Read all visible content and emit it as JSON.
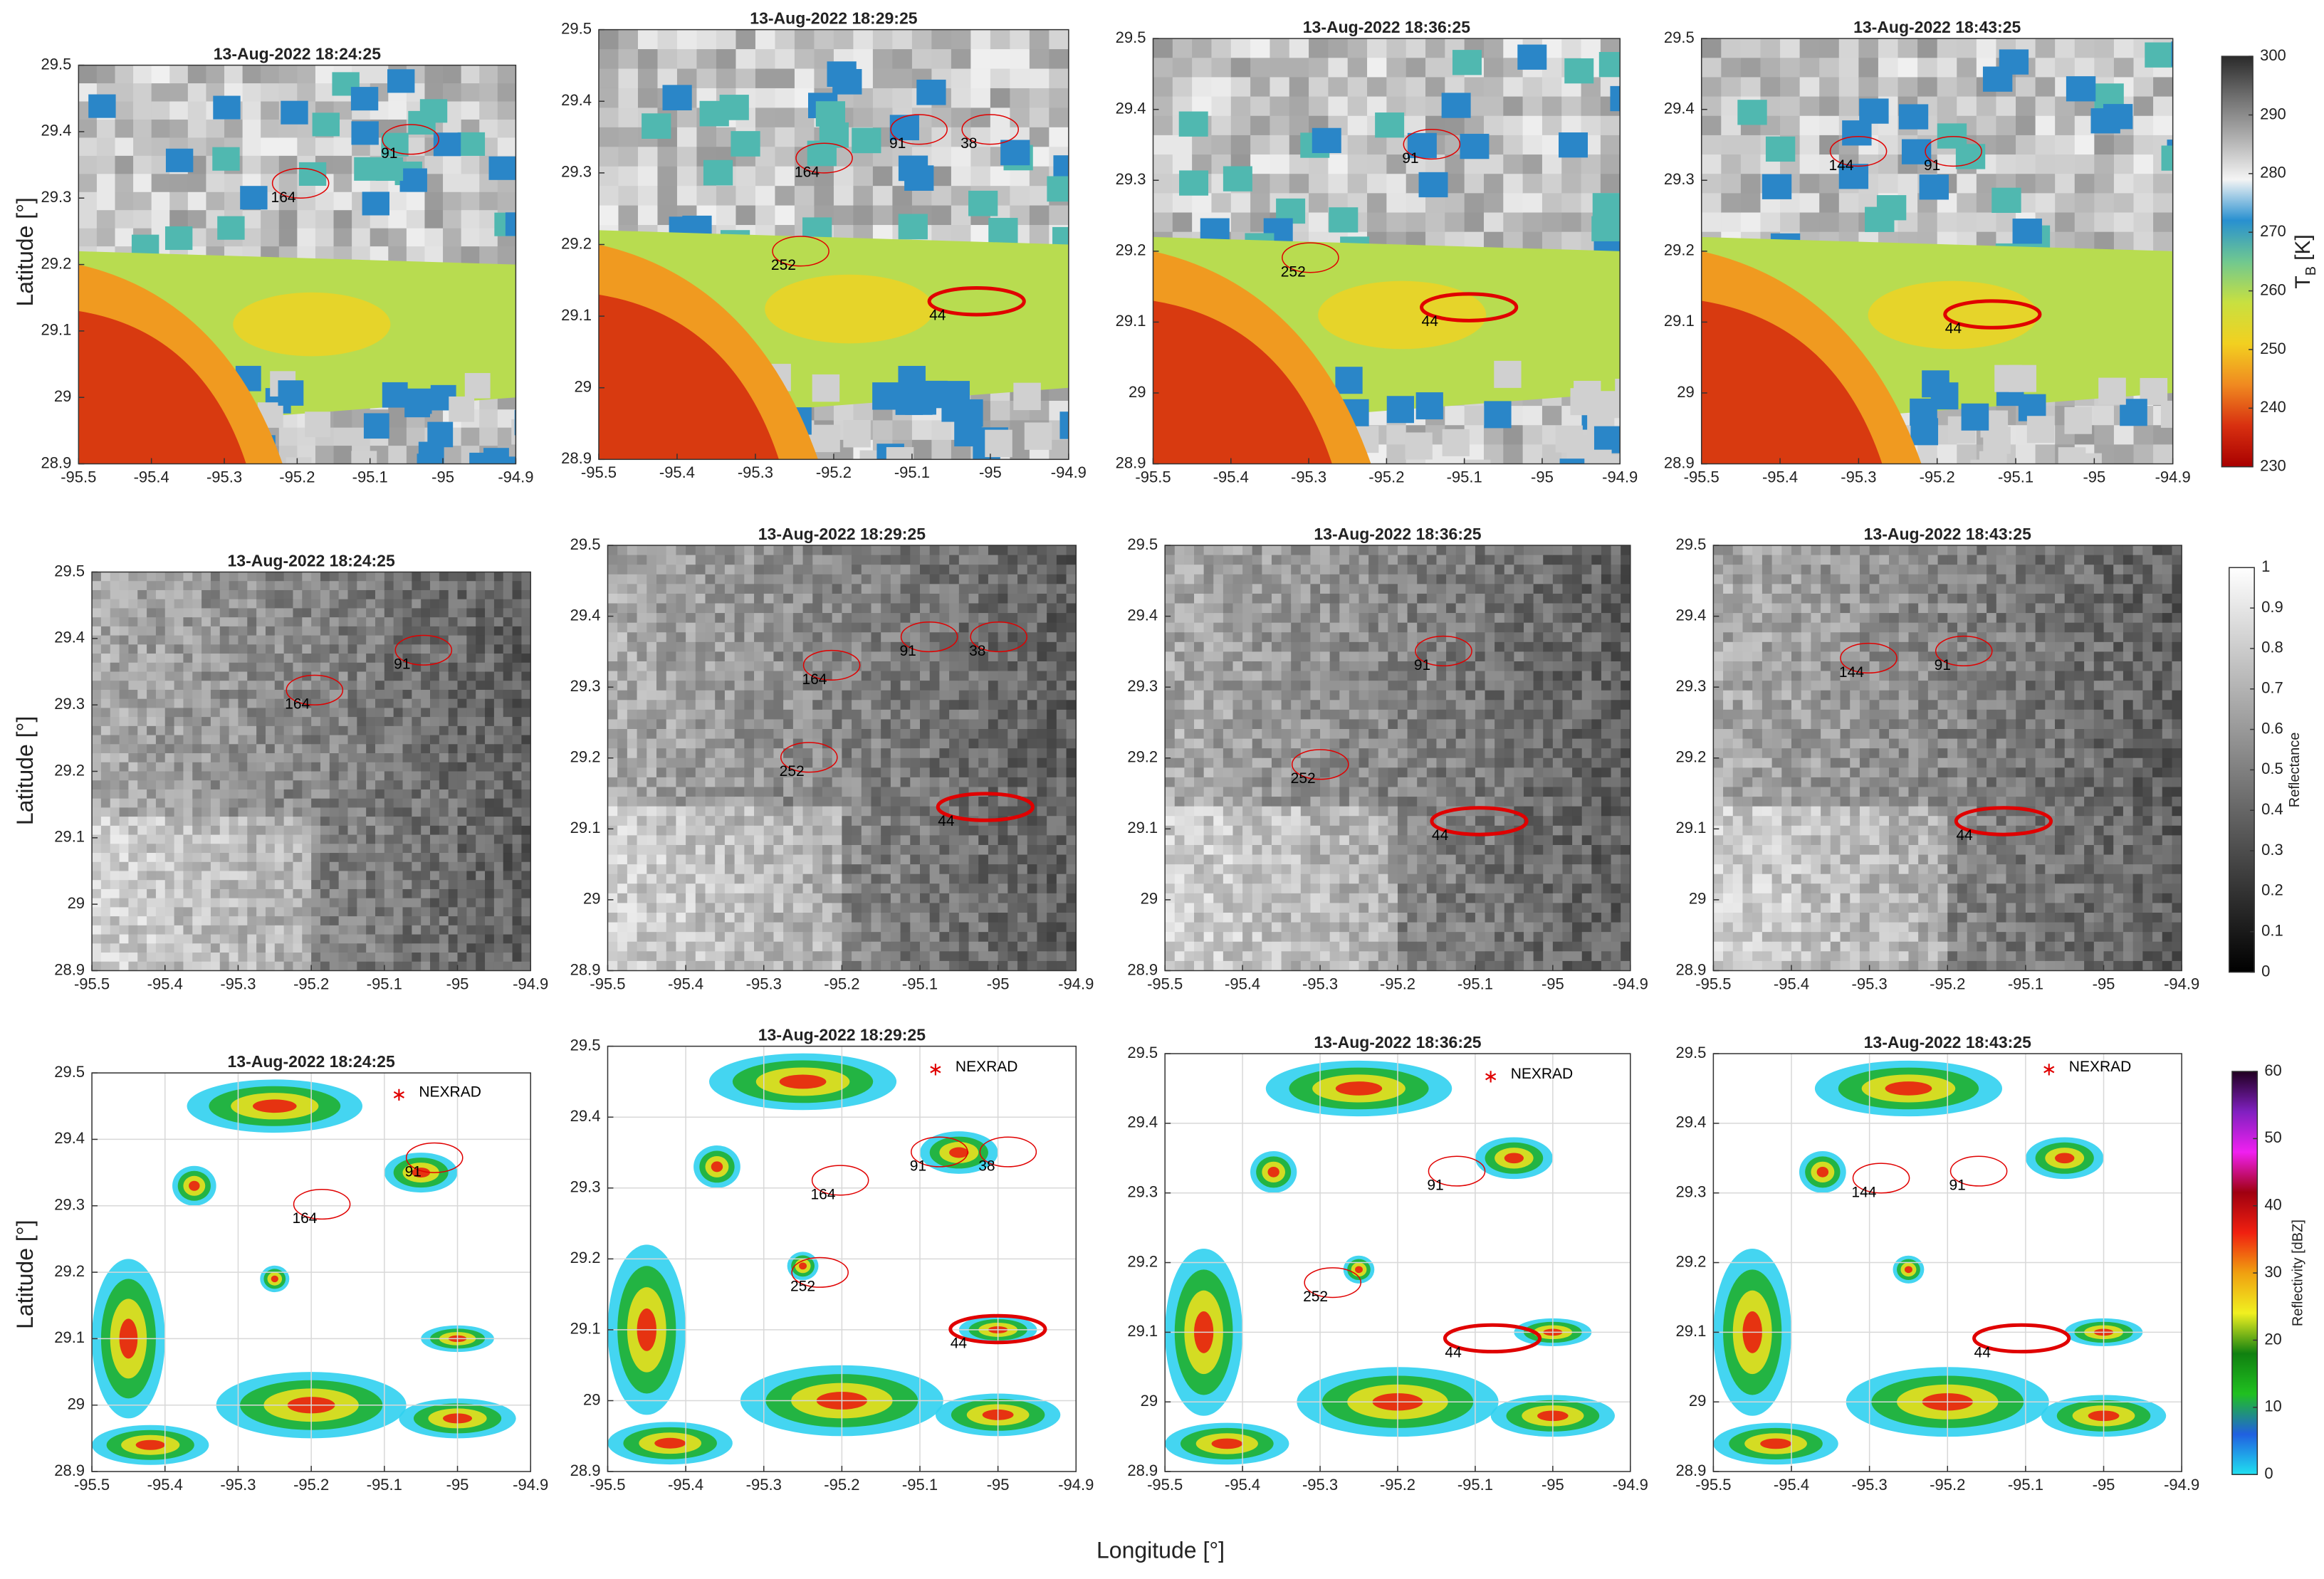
{
  "figure": {
    "ylabel": "Latitude [°]",
    "xlabel": "Longitude [°]"
  },
  "chart_data": [
    {
      "type": "map",
      "layer": "ir",
      "title": "13-Aug-2022 18:24:25",
      "xlim": [
        -95.5,
        -94.9
      ],
      "ylim": [
        28.9,
        29.5
      ],
      "xticks": [
        -95.5,
        -95.4,
        -95.3,
        -95.2,
        -95.1,
        -95,
        -94.9
      ],
      "yticks": [
        28.9,
        29,
        29.1,
        29.2,
        29.3,
        29.4,
        29.5
      ],
      "grid": false,
      "contour_color": "#e00000",
      "cells": [
        {
          "label": 91,
          "lon": -95.085,
          "lat": 29.366,
          "bold": false
        },
        {
          "label": 164,
          "lon": -95.236,
          "lat": 29.3,
          "bold": false
        }
      ]
    },
    {
      "type": "map",
      "layer": "ir",
      "title": "13-Aug-2022 18:29:25",
      "xlim": [
        -95.5,
        -94.9
      ],
      "ylim": [
        28.9,
        29.5
      ],
      "xticks": [
        -95.5,
        -95.4,
        -95.3,
        -95.2,
        -95.1,
        -95,
        -94.9
      ],
      "yticks": [
        28.9,
        29,
        29.1,
        29.2,
        29.3,
        29.4,
        29.5
      ],
      "grid": false,
      "contour_color": "#e00000",
      "cells": [
        {
          "label": 91,
          "lon": -95.129,
          "lat": 29.34,
          "bold": false
        },
        {
          "label": 38,
          "lon": -95.038,
          "lat": 29.34,
          "bold": false
        },
        {
          "label": 164,
          "lon": -95.25,
          "lat": 29.3,
          "bold": false
        },
        {
          "label": 252,
          "lon": -95.28,
          "lat": 29.17,
          "bold": false
        },
        {
          "label": 44,
          "lon": -95.078,
          "lat": 29.1,
          "bold": true
        }
      ]
    },
    {
      "type": "map",
      "layer": "ir",
      "title": "13-Aug-2022 18:36:25",
      "xlim": [
        -95.5,
        -94.9
      ],
      "ylim": [
        28.9,
        29.5
      ],
      "xticks": [
        -95.5,
        -95.4,
        -95.3,
        -95.2,
        -95.1,
        -95,
        -94.9
      ],
      "yticks": [
        28.9,
        29,
        29.1,
        29.2,
        29.3,
        29.4,
        29.5
      ],
      "grid": false,
      "contour_color": "#e00000",
      "cells": [
        {
          "label": 91,
          "lon": -95.18,
          "lat": 29.33,
          "bold": false
        },
        {
          "label": 252,
          "lon": -95.336,
          "lat": 29.17,
          "bold": false
        },
        {
          "label": 44,
          "lon": -95.155,
          "lat": 29.1,
          "bold": true
        }
      ]
    },
    {
      "type": "map",
      "layer": "ir",
      "title": "13-Aug-2022 18:43:25",
      "xlim": [
        -95.5,
        -94.9
      ],
      "ylim": [
        28.9,
        29.5
      ],
      "xticks": [
        -95.5,
        -95.4,
        -95.3,
        -95.2,
        -95.1,
        -95,
        -94.9
      ],
      "yticks": [
        28.9,
        29,
        29.1,
        29.2,
        29.3,
        29.4,
        29.5
      ],
      "grid": false,
      "contour_color": "#e00000",
      "cells": [
        {
          "label": 144,
          "lon": -95.338,
          "lat": 29.32,
          "bold": false
        },
        {
          "label": 91,
          "lon": -95.217,
          "lat": 29.32,
          "bold": false
        },
        {
          "label": 44,
          "lon": -95.19,
          "lat": 29.09,
          "bold": true
        }
      ]
    },
    {
      "type": "map",
      "layer": "vis",
      "title": "13-Aug-2022 18:24:25",
      "xlim": [
        -95.5,
        -94.9
      ],
      "ylim": [
        28.9,
        29.5
      ],
      "xticks": [
        -95.5,
        -95.4,
        -95.3,
        -95.2,
        -95.1,
        -95,
        -94.9
      ],
      "yticks": [
        28.9,
        29,
        29.1,
        29.2,
        29.3,
        29.4,
        29.5
      ],
      "grid": false,
      "contour_color": "#e00000",
      "cells": [
        {
          "label": 91,
          "lon": -95.087,
          "lat": 29.36,
          "bold": false
        },
        {
          "label": 164,
          "lon": -95.236,
          "lat": 29.3,
          "bold": false
        }
      ]
    },
    {
      "type": "map",
      "layer": "vis",
      "title": "13-Aug-2022 18:29:25",
      "xlim": [
        -95.5,
        -94.9
      ],
      "ylim": [
        28.9,
        29.5
      ],
      "xticks": [
        -95.5,
        -95.4,
        -95.3,
        -95.2,
        -95.1,
        -95,
        -94.9
      ],
      "yticks": [
        28.9,
        29,
        29.1,
        29.2,
        29.3,
        29.4,
        29.5
      ],
      "grid": false,
      "contour_color": "#e00000",
      "cells": [
        {
          "label": 91,
          "lon": -95.126,
          "lat": 29.35,
          "bold": false
        },
        {
          "label": 38,
          "lon": -95.037,
          "lat": 29.35,
          "bold": false
        },
        {
          "label": 164,
          "lon": -95.251,
          "lat": 29.31,
          "bold": false
        },
        {
          "label": 252,
          "lon": -95.28,
          "lat": 29.18,
          "bold": false
        },
        {
          "label": 44,
          "lon": -95.077,
          "lat": 29.11,
          "bold": true
        }
      ]
    },
    {
      "type": "map",
      "layer": "vis",
      "title": "13-Aug-2022 18:36:25",
      "xlim": [
        -95.5,
        -94.9
      ],
      "ylim": [
        28.9,
        29.5
      ],
      "xticks": [
        -95.5,
        -95.4,
        -95.3,
        -95.2,
        -95.1,
        -95,
        -94.9
      ],
      "yticks": [
        28.9,
        29,
        29.1,
        29.2,
        29.3,
        29.4,
        29.5
      ],
      "grid": false,
      "contour_color": "#e00000",
      "cells": [
        {
          "label": 91,
          "lon": -95.179,
          "lat": 29.33,
          "bold": false
        },
        {
          "label": 252,
          "lon": -95.338,
          "lat": 29.17,
          "bold": false
        },
        {
          "label": 44,
          "lon": -95.156,
          "lat": 29.09,
          "bold": true
        }
      ]
    },
    {
      "type": "map",
      "layer": "vis",
      "title": "13-Aug-2022 18:43:25",
      "xlim": [
        -95.5,
        -94.9
      ],
      "ylim": [
        28.9,
        29.5
      ],
      "xticks": [
        -95.5,
        -95.4,
        -95.3,
        -95.2,
        -95.1,
        -95,
        -94.9
      ],
      "yticks": [
        28.9,
        29,
        29.1,
        29.2,
        29.3,
        29.4,
        29.5
      ],
      "grid": false,
      "contour_color": "#e00000",
      "cells": [
        {
          "label": 144,
          "lon": -95.339,
          "lat": 29.32,
          "bold": false
        },
        {
          "label": 91,
          "lon": -95.217,
          "lat": 29.33,
          "bold": false
        },
        {
          "label": 44,
          "lon": -95.189,
          "lat": 29.09,
          "bold": true
        }
      ]
    },
    {
      "type": "map",
      "layer": "radar",
      "title": "13-Aug-2022 18:24:25",
      "xlim": [
        -95.5,
        -94.9
      ],
      "ylim": [
        28.9,
        29.5
      ],
      "xticks": [
        -95.5,
        -95.4,
        -95.3,
        -95.2,
        -95.1,
        -95,
        -94.9
      ],
      "yticks": [
        28.9,
        29,
        29.1,
        29.2,
        29.3,
        29.4,
        29.5
      ],
      "grid": true,
      "contour_color": "#e00000",
      "annotation": {
        "text": "NEXRAD",
        "lon": -95.08,
        "lat": 29.47
      },
      "cells": [
        {
          "label": 91,
          "lon": -95.072,
          "lat": 29.35,
          "bold": false
        },
        {
          "label": 164,
          "lon": -95.226,
          "lat": 29.28,
          "bold": false
        }
      ]
    },
    {
      "type": "map",
      "layer": "radar",
      "title": "13-Aug-2022 18:29:25",
      "xlim": [
        -95.5,
        -94.9
      ],
      "ylim": [
        28.9,
        29.5
      ],
      "xticks": [
        -95.5,
        -95.4,
        -95.3,
        -95.2,
        -95.1,
        -95,
        -94.9
      ],
      "yticks": [
        28.9,
        29,
        29.1,
        29.2,
        29.3,
        29.4,
        29.5
      ],
      "grid": true,
      "contour_color": "#e00000",
      "annotation": {
        "text": "NEXRAD",
        "lon": -95.08,
        "lat": 29.47
      },
      "cells": [
        {
          "label": 91,
          "lon": -95.113,
          "lat": 29.33,
          "bold": false
        },
        {
          "label": 38,
          "lon": -95.025,
          "lat": 29.33,
          "bold": false
        },
        {
          "label": 164,
          "lon": -95.24,
          "lat": 29.29,
          "bold": false
        },
        {
          "label": 252,
          "lon": -95.266,
          "lat": 29.16,
          "bold": false
        },
        {
          "label": 44,
          "lon": -95.061,
          "lat": 29.08,
          "bold": true
        }
      ]
    },
    {
      "type": "map",
      "layer": "radar",
      "title": "13-Aug-2022 18:36:25",
      "xlim": [
        -95.5,
        -94.9
      ],
      "ylim": [
        28.9,
        29.5
      ],
      "xticks": [
        -95.5,
        -95.4,
        -95.3,
        -95.2,
        -95.1,
        -95,
        -94.9
      ],
      "yticks": [
        28.9,
        29,
        29.1,
        29.2,
        29.3,
        29.4,
        29.5
      ],
      "grid": true,
      "contour_color": "#e00000",
      "annotation": {
        "text": "NEXRAD",
        "lon": -95.08,
        "lat": 29.47
      },
      "cells": [
        {
          "label": 91,
          "lon": -95.162,
          "lat": 29.31,
          "bold": false
        },
        {
          "label": 252,
          "lon": -95.322,
          "lat": 29.15,
          "bold": false
        },
        {
          "label": 44,
          "lon": -95.139,
          "lat": 29.07,
          "bold": true
        }
      ]
    },
    {
      "type": "map",
      "layer": "radar",
      "title": "13-Aug-2022 18:43:25",
      "xlim": [
        -95.5,
        -94.9
      ],
      "ylim": [
        28.9,
        29.5
      ],
      "xticks": [
        -95.5,
        -95.4,
        -95.3,
        -95.2,
        -95.1,
        -95,
        -94.9
      ],
      "yticks": [
        28.9,
        29,
        29.1,
        29.2,
        29.3,
        29.4,
        29.5
      ],
      "grid": true,
      "contour_color": "#e00000",
      "annotation": {
        "text": "NEXRAD",
        "lon": -95.07,
        "lat": 29.48
      },
      "cells": [
        {
          "label": 144,
          "lon": -95.323,
          "lat": 29.3,
          "bold": false
        },
        {
          "label": 91,
          "lon": -95.198,
          "lat": 29.31,
          "bold": false
        },
        {
          "label": 44,
          "lon": -95.166,
          "lat": 29.07,
          "bold": true
        }
      ]
    },
    {
      "type": "colorbar",
      "ylim": [
        230,
        300
      ],
      "yticks": [
        230,
        240,
        250,
        260,
        270,
        280,
        290,
        300
      ],
      "label": "T",
      "label_sub": "B",
      "label_unit": "[K]",
      "colors": [
        "#a80000",
        "#d83010",
        "#f08a20",
        "#f2d020",
        "#c8e040",
        "#70c890",
        "#2890d0",
        "#f4f4f4",
        "#b0b0b0",
        "#707070",
        "#2a2a2a"
      ]
    },
    {
      "type": "colorbar",
      "ylim": [
        0,
        1
      ],
      "yticks": [
        0,
        0.1,
        0.2,
        0.3,
        0.4,
        0.5,
        0.6,
        0.7,
        0.8,
        0.9,
        1
      ],
      "label": "Reflectance",
      "colors": [
        "#000000",
        "#ffffff"
      ]
    },
    {
      "type": "colorbar",
      "ylim": [
        0,
        60
      ],
      "yticks": [
        0,
        10,
        20,
        30,
        40,
        50,
        60
      ],
      "label": "Reflectivity [dBZ]",
      "colors": [
        "#20e0f0",
        "#2060e0",
        "#20c020",
        "#108010",
        "#f0f020",
        "#f0a010",
        "#f02010",
        "#a00010",
        "#f020f0",
        "#8020c0",
        "#200020"
      ]
    }
  ]
}
